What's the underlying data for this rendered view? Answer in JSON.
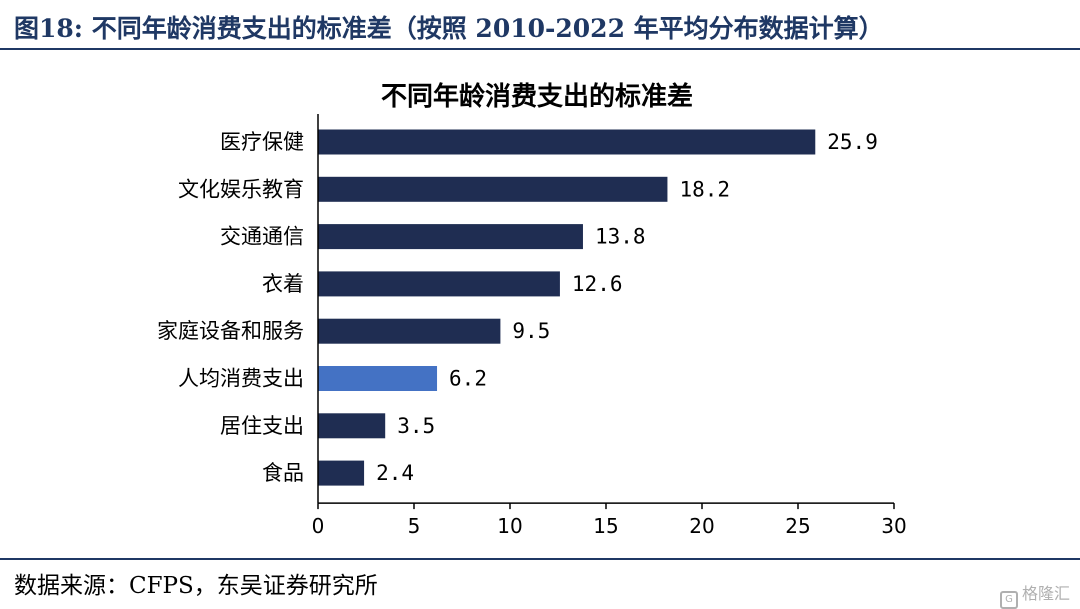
{
  "figure": {
    "title": "图18:  不同年龄消费支出的标准差（按照 2010-2022 年平均分布数据计算）",
    "source": "数据来源：CFPS，东吴证券研究所",
    "watermark": "格隆汇"
  },
  "colors": {
    "bar": "#1f2d52",
    "highlight": "#4472c4",
    "header": "#1f3864"
  },
  "chart_data": {
    "type": "bar",
    "orientation": "horizontal",
    "title": "不同年龄消费支出的标准差",
    "categories": [
      "医疗保健",
      "文化娱乐教育",
      "交通通信",
      "衣着",
      "家庭设备和服务",
      "人均消费支出",
      "居住支出",
      "食品"
    ],
    "values": [
      25.9,
      18.2,
      13.8,
      12.6,
      9.5,
      6.2,
      3.5,
      2.4
    ],
    "value_labels": [
      "25.9",
      "18.2",
      "13.8",
      "12.6",
      "9.5",
      "6.2",
      "3.5",
      "2.4"
    ],
    "highlight_category": "人均消费支出",
    "xlim": [
      0,
      30
    ],
    "xticks": [
      0,
      5,
      10,
      15,
      20,
      25,
      30
    ],
    "xlabel": "",
    "ylabel": "",
    "grid": false,
    "legend": "none"
  }
}
